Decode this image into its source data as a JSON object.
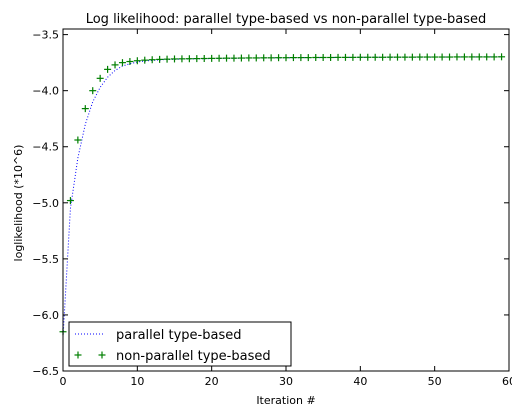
{
  "chart_data": {
    "type": "line",
    "title": "Log likelihood: parallel type-based vs non-parallel type-based",
    "xlabel": "Iteration #",
    "ylabel": "loglikelihood (*10^6)",
    "xlim": [
      0,
      60
    ],
    "ylim": [
      -6.5,
      -3.45
    ],
    "xticks": [
      0,
      10,
      20,
      30,
      40,
      50,
      60
    ],
    "xtick_labels": [
      "0",
      "10",
      "20",
      "30",
      "40",
      "50",
      "60"
    ],
    "yticks": [
      -6.5,
      -6.0,
      -5.5,
      -5.0,
      -4.5,
      -4.0,
      -3.5
    ],
    "ytick_labels": [
      "−6.5",
      "−6.0",
      "−5.5",
      "−5.0",
      "−4.5",
      "−4.0",
      "−3.5"
    ],
    "grid": false,
    "legend_position": "lower-left",
    "x": [
      0,
      1,
      2,
      3,
      4,
      5,
      6,
      7,
      8,
      9,
      10,
      11,
      12,
      13,
      14,
      15,
      16,
      17,
      18,
      19,
      20,
      21,
      22,
      23,
      24,
      25,
      26,
      27,
      28,
      29,
      30,
      31,
      32,
      33,
      34,
      35,
      36,
      37,
      38,
      39,
      40,
      41,
      42,
      43,
      44,
      45,
      46,
      47,
      48,
      49,
      50,
      51,
      52,
      53,
      54,
      55,
      56,
      57,
      58,
      59
    ],
    "series": [
      {
        "name": "parallel type-based",
        "style": "dotted",
        "color": "#0000ff",
        "values": [
          -6.2,
          -5.05,
          -4.6,
          -4.3,
          -4.1,
          -3.97,
          -3.88,
          -3.82,
          -3.78,
          -3.76,
          -3.745,
          -3.735,
          -3.73,
          -3.725,
          -3.722,
          -3.72,
          -3.718,
          -3.717,
          -3.716,
          -3.715,
          -3.714,
          -3.713,
          -3.712,
          -3.711,
          -3.71,
          -3.709,
          -3.709,
          -3.708,
          -3.708,
          -3.707,
          -3.707,
          -3.706,
          -3.706,
          -3.705,
          -3.705,
          -3.705,
          -3.704,
          -3.704,
          -3.704,
          -3.703,
          -3.703,
          -3.703,
          -3.702,
          -3.702,
          -3.702,
          -3.702,
          -3.701,
          -3.701,
          -3.701,
          -3.701,
          -3.7,
          -3.7,
          -3.7,
          -3.7,
          -3.7,
          -3.7,
          -3.699,
          -3.699,
          -3.699,
          -3.699
        ]
      },
      {
        "name": "non-parallel type-based",
        "style": "plus",
        "color": "#007f00",
        "values": [
          -6.15,
          -4.98,
          -4.44,
          -4.16,
          -4.0,
          -3.89,
          -3.81,
          -3.77,
          -3.75,
          -3.74,
          -3.733,
          -3.728,
          -3.724,
          -3.721,
          -3.719,
          -3.717,
          -3.716,
          -3.715,
          -3.714,
          -3.713,
          -3.712,
          -3.711,
          -3.71,
          -3.71,
          -3.709,
          -3.708,
          -3.708,
          -3.707,
          -3.707,
          -3.706,
          -3.706,
          -3.705,
          -3.705,
          -3.705,
          -3.704,
          -3.704,
          -3.704,
          -3.703,
          -3.703,
          -3.703,
          -3.702,
          -3.702,
          -3.702,
          -3.702,
          -3.701,
          -3.701,
          -3.701,
          -3.701,
          -3.7,
          -3.7,
          -3.7,
          -3.7,
          -3.7,
          -3.699,
          -3.699,
          -3.699,
          -3.699,
          -3.699,
          -3.699,
          -3.698
        ]
      }
    ]
  }
}
